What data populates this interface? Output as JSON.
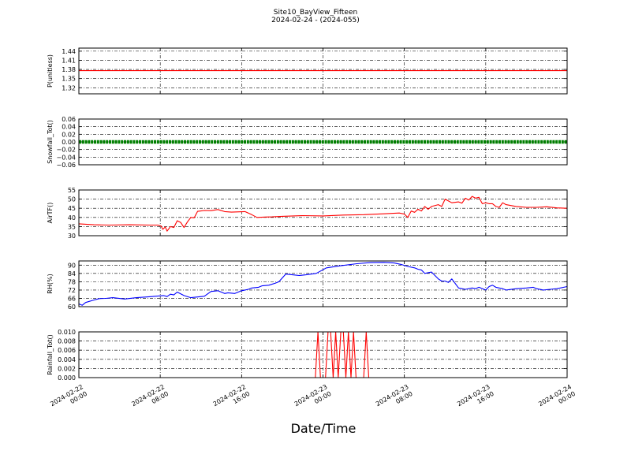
{
  "figure": {
    "title_line1": "Site10_BayView_Fifteen",
    "title_line2": "2024-02-24 - (2024-055)",
    "xlabel": "Date/Time"
  },
  "chart_data": [
    {
      "type": "line",
      "ylabel": "P(unitless)",
      "ylim": [
        1.3,
        1.45
      ],
      "yticks": [
        "1.44",
        "1.41",
        "1.38",
        "1.35",
        "1.32"
      ],
      "ytick_values": [
        1.44,
        1.41,
        1.38,
        1.35,
        1.32
      ],
      "grid": true,
      "color": "#ff0000",
      "xlim": [
        "2024-02-22 00:00",
        "2024-02-24 00:00"
      ],
      "series": [
        {
          "x": [
            "2024-02-22 00:00",
            "2024-02-24 00:00"
          ],
          "y": [
            1.376,
            1.376
          ]
        }
      ]
    },
    {
      "type": "line",
      "ylabel": "Snowfall_Tot()",
      "ylim": [
        -0.06,
        0.06
      ],
      "yticks": [
        "0.06",
        "0.04",
        "0.02",
        "0.00",
        "−0.02",
        "−0.04",
        "−0.06"
      ],
      "ytick_values": [
        0.06,
        0.04,
        0.02,
        0.0,
        -0.02,
        -0.04,
        -0.06
      ],
      "grid": true,
      "color": "#008000",
      "markers": true,
      "xlim": [
        "2024-02-22 00:00",
        "2024-02-24 00:00"
      ],
      "series": [
        {
          "x": [
            "2024-02-22 00:00",
            "2024-02-24 00:00"
          ],
          "y": [
            0.0,
            0.0
          ]
        }
      ]
    },
    {
      "type": "line",
      "ylabel": "AirTF()",
      "ylim": [
        30,
        55
      ],
      "yticks": [
        "55",
        "50",
        "45",
        "40",
        "35",
        "30"
      ],
      "ytick_values": [
        55,
        50,
        45,
        40,
        35,
        30
      ],
      "grid": true,
      "color": "#ff0000",
      "xlim": [
        "2024-02-22 00:00",
        "2024-02-24 00:00"
      ],
      "series": [
        {
          "x": [
            "2024-02-22 00:00",
            "2024-02-22 01:30",
            "2024-02-22 03:00",
            "2024-02-22 05:00",
            "2024-02-22 07:00",
            "2024-02-22 07:45",
            "2024-02-22 08:05",
            "2024-02-22 08:15",
            "2024-02-22 08:30",
            "2024-02-22 08:40",
            "2024-02-22 09:00",
            "2024-02-22 09:20",
            "2024-02-22 09:40",
            "2024-02-22 10:00",
            "2024-02-22 10:20",
            "2024-02-22 10:40",
            "2024-02-22 11:00",
            "2024-02-22 11:20",
            "2024-02-22 11:40",
            "2024-02-22 12:20",
            "2024-02-22 13:00",
            "2024-02-22 13:40",
            "2024-02-22 14:20",
            "2024-02-22 15:00",
            "2024-02-22 16:20",
            "2024-02-22 17:00",
            "2024-02-22 17:30",
            "2024-02-22 18:20",
            "2024-02-22 19:00",
            "2024-02-22 20:00",
            "2024-02-22 22:00",
            "2024-02-23 00:00",
            "2024-02-23 02:00",
            "2024-02-23 04:00",
            "2024-02-23 06:00",
            "2024-02-23 07:30",
            "2024-02-23 08:00",
            "2024-02-23 08:20",
            "2024-02-23 08:40",
            "2024-02-23 09:00",
            "2024-02-23 09:20",
            "2024-02-23 09:40",
            "2024-02-23 10:00",
            "2024-02-23 10:20",
            "2024-02-23 10:40",
            "2024-02-23 11:20",
            "2024-02-23 11:40",
            "2024-02-23 12:00",
            "2024-02-23 12:20",
            "2024-02-23 12:40",
            "2024-02-23 13:20",
            "2024-02-23 13:40",
            "2024-02-23 14:00",
            "2024-02-23 14:20",
            "2024-02-23 14:40",
            "2024-02-23 15:00",
            "2024-02-23 15:20",
            "2024-02-23 15:40",
            "2024-02-23 16:00",
            "2024-02-23 16:20",
            "2024-02-23 16:40",
            "2024-02-23 17:00",
            "2024-02-23 17:20",
            "2024-02-23 17:40",
            "2024-02-23 18:00",
            "2024-02-23 19:00",
            "2024-02-23 20:00",
            "2024-02-23 21:00",
            "2024-02-23 22:00",
            "2024-02-23 23:00",
            "2024-02-24 00:00"
          ],
          "y": [
            36.5,
            36.0,
            35.8,
            36.0,
            35.8,
            35.8,
            35.3,
            33.5,
            34.8,
            32.5,
            35.0,
            34.5,
            38.2,
            37.3,
            34.5,
            37.5,
            40.0,
            39.8,
            43.3,
            43.8,
            43.7,
            44.3,
            43.2,
            42.9,
            43.2,
            41.5,
            40.0,
            40.2,
            40.3,
            40.6,
            41.0,
            40.8,
            41.3,
            41.5,
            42.0,
            42.4,
            41.8,
            40.0,
            43.5,
            42.8,
            44.5,
            43.5,
            46.0,
            44.5,
            46.0,
            47.0,
            46.0,
            50.0,
            49.0,
            48.0,
            48.5,
            47.8,
            50.5,
            49.5,
            51.5,
            50.5,
            51.0,
            47.5,
            48.0,
            47.5,
            47.5,
            46.0,
            45.5,
            48.0,
            47.0,
            46.0,
            45.5,
            45.5,
            45.8,
            45.2,
            45.0
          ]
        }
      ]
    },
    {
      "type": "line",
      "ylabel": "RH(%)",
      "ylim": [
        60,
        93
      ],
      "yticks": [
        "90",
        "84",
        "78",
        "72",
        "66",
        "60"
      ],
      "ytick_values": [
        90,
        84,
        78,
        72,
        66,
        60
      ],
      "grid": true,
      "color": "#0000ff",
      "xlim": [
        "2024-02-22 00:00",
        "2024-02-24 00:00"
      ],
      "series": [
        {
          "x": [
            "2024-02-22 00:00",
            "2024-02-22 00:20",
            "2024-02-22 00:40",
            "2024-02-22 01:20",
            "2024-02-22 02:00",
            "2024-02-22 02:40",
            "2024-02-22 03:20",
            "2024-02-22 04:30",
            "2024-02-22 05:40",
            "2024-02-22 06:40",
            "2024-02-22 07:30",
            "2024-02-22 08:20",
            "2024-02-22 08:40",
            "2024-02-22 09:00",
            "2024-02-22 09:20",
            "2024-02-22 09:40",
            "2024-02-22 10:20",
            "2024-02-22 11:00",
            "2024-02-22 11:40",
            "2024-02-22 12:20",
            "2024-02-22 13:00",
            "2024-02-22 13:40",
            "2024-02-22 14:20",
            "2024-02-22 14:40",
            "2024-02-22 15:20",
            "2024-02-22 16:00",
            "2024-02-22 16:20",
            "2024-02-22 16:40",
            "2024-02-22 17:00",
            "2024-02-22 17:40",
            "2024-02-22 18:00",
            "2024-02-22 18:40",
            "2024-02-22 19:20",
            "2024-02-22 19:40",
            "2024-02-22 20:20",
            "2024-02-22 21:00",
            "2024-02-22 21:40",
            "2024-02-22 22:20",
            "2024-02-22 23:20",
            "2024-02-23 00:20",
            "2024-02-23 01:40",
            "2024-02-23 03:20",
            "2024-02-23 04:40",
            "2024-02-23 06:00",
            "2024-02-23 07:00",
            "2024-02-23 07:40",
            "2024-02-23 08:20",
            "2024-02-23 09:00",
            "2024-02-23 09:20",
            "2024-02-23 09:40",
            "2024-02-23 10:00",
            "2024-02-23 10:40",
            "2024-02-23 11:20",
            "2024-02-23 11:40",
            "2024-02-23 12:00",
            "2024-02-23 12:20",
            "2024-02-23 12:40",
            "2024-02-23 13:20",
            "2024-02-23 13:40",
            "2024-02-23 14:00",
            "2024-02-23 14:40",
            "2024-02-23 15:00",
            "2024-02-23 15:20",
            "2024-02-23 16:00",
            "2024-02-23 16:20",
            "2024-02-23 16:40",
            "2024-02-23 17:00",
            "2024-02-23 17:40",
            "2024-02-23 18:00",
            "2024-02-23 19:00",
            "2024-02-23 20:00",
            "2024-02-23 20:40",
            "2024-02-23 21:00",
            "2024-02-23 21:40",
            "2024-02-23 22:20",
            "2024-02-23 23:00",
            "2024-02-24 00:00"
          ],
          "y": [
            62.0,
            61.0,
            63.0,
            64.5,
            65.8,
            66.0,
            66.5,
            65.5,
            66.5,
            67.0,
            67.5,
            68.0,
            67.3,
            69.0,
            68.5,
            70.5,
            68.0,
            66.5,
            67.0,
            67.5,
            71.0,
            71.5,
            69.5,
            70.0,
            69.5,
            71.5,
            72.0,
            72.5,
            73.5,
            74.0,
            75.0,
            75.5,
            77.0,
            78.0,
            83.5,
            83.0,
            82.5,
            83.0,
            84.0,
            88.0,
            89.5,
            91.0,
            91.8,
            92.0,
            91.5,
            90.5,
            89.0,
            88.0,
            87.0,
            86.5,
            84.0,
            85.0,
            80.0,
            78.5,
            78.5,
            77.5,
            80.0,
            73.5,
            73.0,
            72.5,
            73.5,
            73.0,
            74.0,
            72.0,
            74.5,
            75.5,
            74.0,
            73.0,
            72.0,
            73.0,
            73.5,
            74.0,
            73.0,
            72.0,
            72.5,
            73.0,
            74.5
          ]
        }
      ]
    },
    {
      "type": "line",
      "ylabel": "Rainfall_Tot()",
      "ylim": [
        0,
        0.01
      ],
      "yticks": [
        "0.010",
        "0.008",
        "0.006",
        "0.004",
        "0.002",
        "0.000"
      ],
      "ytick_values": [
        0.01,
        0.008,
        0.006,
        0.004,
        0.002,
        0.0
      ],
      "grid": true,
      "color": "#ff0000",
      "xlim": [
        "2024-02-22 00:00",
        "2024-02-24 00:00"
      ],
      "series": [
        {
          "x": [
            "2024-02-22 00:00",
            "2024-02-22 23:15",
            "2024-02-22 23:30",
            "2024-02-22 23:45",
            "2024-02-23 00:15",
            "2024-02-23 00:30",
            "2024-02-23 00:45",
            "2024-02-23 01:00",
            "2024-02-23 01:15",
            "2024-02-23 01:30",
            "2024-02-23 01:45",
            "2024-02-23 02:00",
            "2024-02-23 02:15",
            "2024-02-23 02:30",
            "2024-02-23 02:45",
            "2024-02-23 03:00",
            "2024-02-23 03:15",
            "2024-02-23 03:30",
            "2024-02-23 04:00",
            "2024-02-23 04:15",
            "2024-02-23 04:30",
            "2024-02-24 00:00"
          ],
          "y": [
            0,
            0,
            0.01,
            0,
            0,
            0.01,
            0.01,
            0,
            0.01,
            0,
            0.01,
            0.01,
            0,
            0.01,
            0,
            0.01,
            0,
            0,
            0,
            0.01,
            0,
            0
          ]
        }
      ]
    }
  ],
  "x_axis": {
    "tick_labels": [
      {
        "line1": "2024-02-22",
        "line2": "00:00",
        "t": "2024-02-22 00:00"
      },
      {
        "line1": "2024-02-22",
        "line2": "08:00",
        "t": "2024-02-22 08:00"
      },
      {
        "line1": "2024-02-22",
        "line2": "16:00",
        "t": "2024-02-22 16:00"
      },
      {
        "line1": "2024-02-23",
        "line2": "00:00",
        "t": "2024-02-23 00:00"
      },
      {
        "line1": "2024-02-23",
        "line2": "08:00",
        "t": "2024-02-23 08:00"
      },
      {
        "line1": "2024-02-23",
        "line2": "16:00",
        "t": "2024-02-23 16:00"
      },
      {
        "line1": "2024-02-24",
        "line2": "00:00",
        "t": "2024-02-24 00:00"
      }
    ]
  }
}
